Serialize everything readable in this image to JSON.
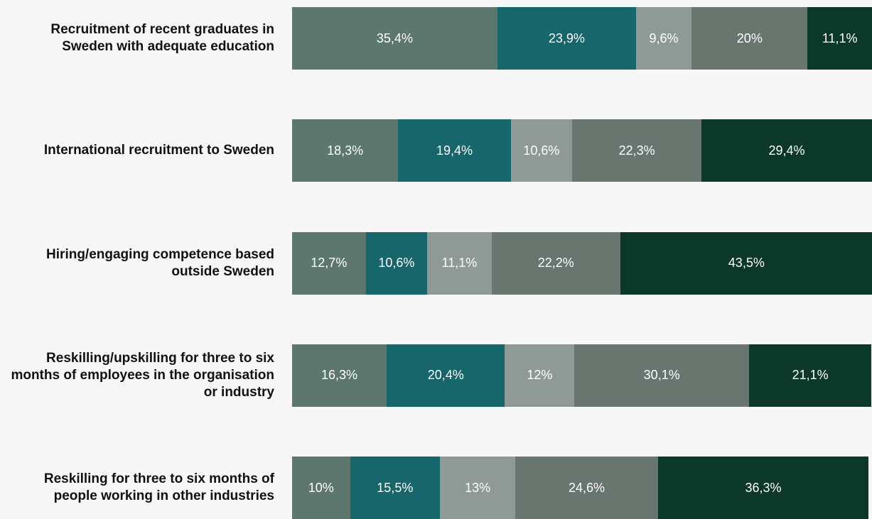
{
  "chart_data": {
    "type": "stacked-bar",
    "categories": [
      "Recruitment of recent graduates in Sweden with adequate education",
      "International recruitment to Sweden",
      "Hiring/engaging competence based outside Sweden",
      "Reskilling/upskilling for three to six months of employees in the organisation or industry",
      "Reskilling for three to six months of people working in other industries"
    ],
    "xlim": [
      0,
      100
    ],
    "series": [
      {
        "color": "#5e776e",
        "values": [
          35.4,
          18.3,
          12.7,
          16.3,
          10
        ],
        "value_labels": [
          "35,4%",
          "18,3%",
          "12,7%",
          "16,3%",
          "10%"
        ]
      },
      {
        "color": "#17666b",
        "values": [
          23.9,
          19.4,
          10.6,
          20.4,
          15.5
        ],
        "value_labels": [
          "23,9%",
          "19,4%",
          "10,6%",
          "20,4%",
          "15,5%"
        ]
      },
      {
        "color": "#8f9996",
        "values": [
          9.6,
          10.6,
          11.1,
          12,
          13
        ],
        "value_labels": [
          "9,6%",
          "10,6%",
          "11,1%",
          "12%",
          "13%"
        ]
      },
      {
        "color": "#68766f",
        "values": [
          20,
          22.3,
          22.2,
          30.1,
          24.6
        ],
        "value_labels": [
          "20%",
          "22,3%",
          "22,2%",
          "30,1%",
          "24,6%"
        ]
      },
      {
        "color": "#0b3828",
        "values": [
          11.1,
          29.4,
          43.5,
          21.1,
          36.3
        ],
        "value_labels": [
          "11,1%",
          "29,4%",
          "43,5%",
          "21,1%",
          "36,3%"
        ]
      }
    ]
  }
}
